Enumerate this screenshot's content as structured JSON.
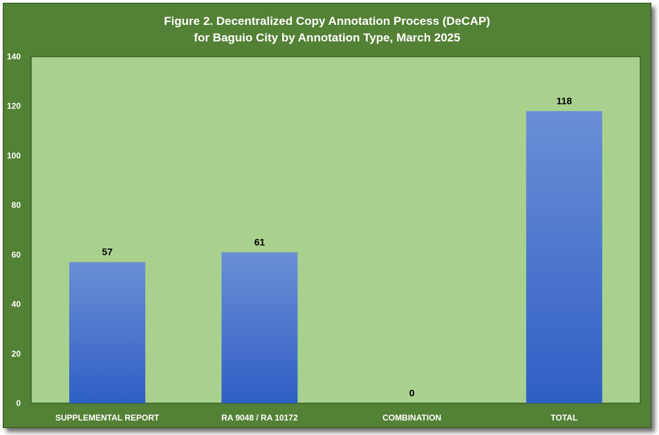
{
  "chart_data": {
    "type": "bar",
    "title_line1": "Figure 2. Decentralized Copy Annotation Process (DeCAP)",
    "title_line2": "for Baguio City by Annotation Type, March 2025",
    "categories": [
      "SUPPLEMENTAL REPORT",
      "RA 9048 / RA 10172",
      "COMBINATION",
      "TOTAL"
    ],
    "values": [
      57,
      61,
      0,
      118
    ],
    "ylim": [
      0,
      140
    ],
    "yticks": [
      0,
      20,
      40,
      60,
      80,
      100,
      120,
      140
    ],
    "xlabel": "",
    "ylabel": "",
    "grid": false,
    "legend": "none",
    "colors": {
      "frame": "#538135",
      "plot_area": "#a9d18e",
      "bar_top": "#6a8fd6",
      "bar_bottom": "#2f5fc4",
      "text": "#ffffff"
    }
  }
}
